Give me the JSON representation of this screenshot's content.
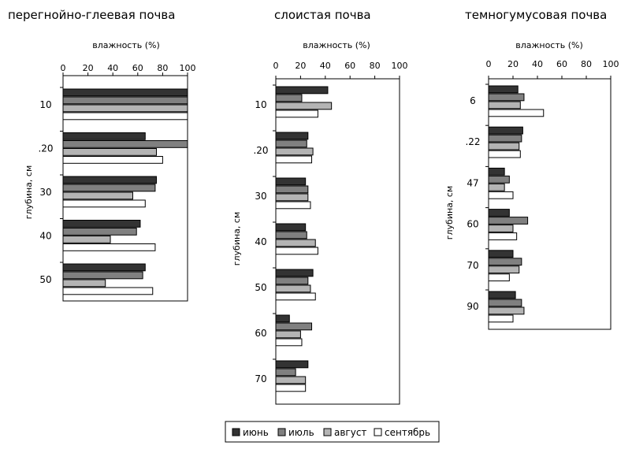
{
  "chart_data": {
    "type": "bar",
    "orientation": "horizontal",
    "series_names": [
      "июнь",
      "июль",
      "август",
      "сентябрь"
    ],
    "colors": [
      "#333333",
      "#808080",
      "#b4b4b4",
      "#ffffff"
    ],
    "legend": {
      "position": "bottom",
      "items": [
        "июнь",
        "июль",
        "август",
        "сентябрь"
      ]
    },
    "panels": [
      {
        "title": "перегнойно-глеевая почва",
        "xlabel": "влажность (%)",
        "ylabel": "глубина, см",
        "xlim": [
          0,
          100
        ],
        "ticks": [
          "0",
          "20",
          "40",
          "60",
          "80",
          "100"
        ],
        "categories": [
          "10",
          ".20",
          "30",
          "40",
          "50"
        ],
        "series": [
          {
            "name": "июнь",
            "values": [
              100,
              66,
              75,
              62,
              66
            ]
          },
          {
            "name": "июль",
            "values": [
              100,
              100,
              74,
              59,
              64
            ]
          },
          {
            "name": "август",
            "values": [
              100,
              75,
              56,
              38,
              34
            ]
          },
          {
            "name": "сентябрь",
            "values": [
              100,
              80,
              66,
              74,
              72
            ]
          }
        ]
      },
      {
        "title": "слоистая почва",
        "xlabel": "влажность (%)",
        "ylabel": "глубина, см",
        "xlim": [
          0,
          100
        ],
        "ticks": [
          "0",
          "20",
          "40",
          "60",
          "80",
          "100"
        ],
        "categories": [
          "10",
          ".20",
          "30",
          "40",
          "50",
          "60",
          "70"
        ],
        "series": [
          {
            "name": "июнь",
            "values": [
              42,
              26,
              24,
              24,
              30,
              11,
              26
            ]
          },
          {
            "name": "июль",
            "values": [
              21,
              25,
              26,
              25,
              26,
              29,
              16
            ]
          },
          {
            "name": "август",
            "values": [
              45,
              30,
              26,
              32,
              28,
              20,
              24
            ]
          },
          {
            "name": "сентябрь",
            "values": [
              34,
              29,
              28,
              34,
              32,
              21,
              24
            ]
          }
        ]
      },
      {
        "title": "темногумусовая почва",
        "xlabel": "влажность (%)",
        "ylabel": "глубина, см",
        "xlim": [
          0,
          100
        ],
        "ticks": [
          "0",
          "20",
          "40",
          "60",
          "80",
          "100"
        ],
        "categories": [
          "6",
          ".22",
          "47",
          "60",
          "70",
          "90"
        ],
        "series": [
          {
            "name": "июнь",
            "values": [
              24,
              28,
              13,
              17,
              20,
              22
            ]
          },
          {
            "name": "июль",
            "values": [
              29,
              27,
              17,
              32,
              27,
              27
            ]
          },
          {
            "name": "август",
            "values": [
              26,
              25,
              13,
              20,
              25,
              29
            ]
          },
          {
            "name": "сентябрь",
            "values": [
              45,
              26,
              20,
              23,
              17,
              20
            ]
          }
        ]
      }
    ]
  }
}
